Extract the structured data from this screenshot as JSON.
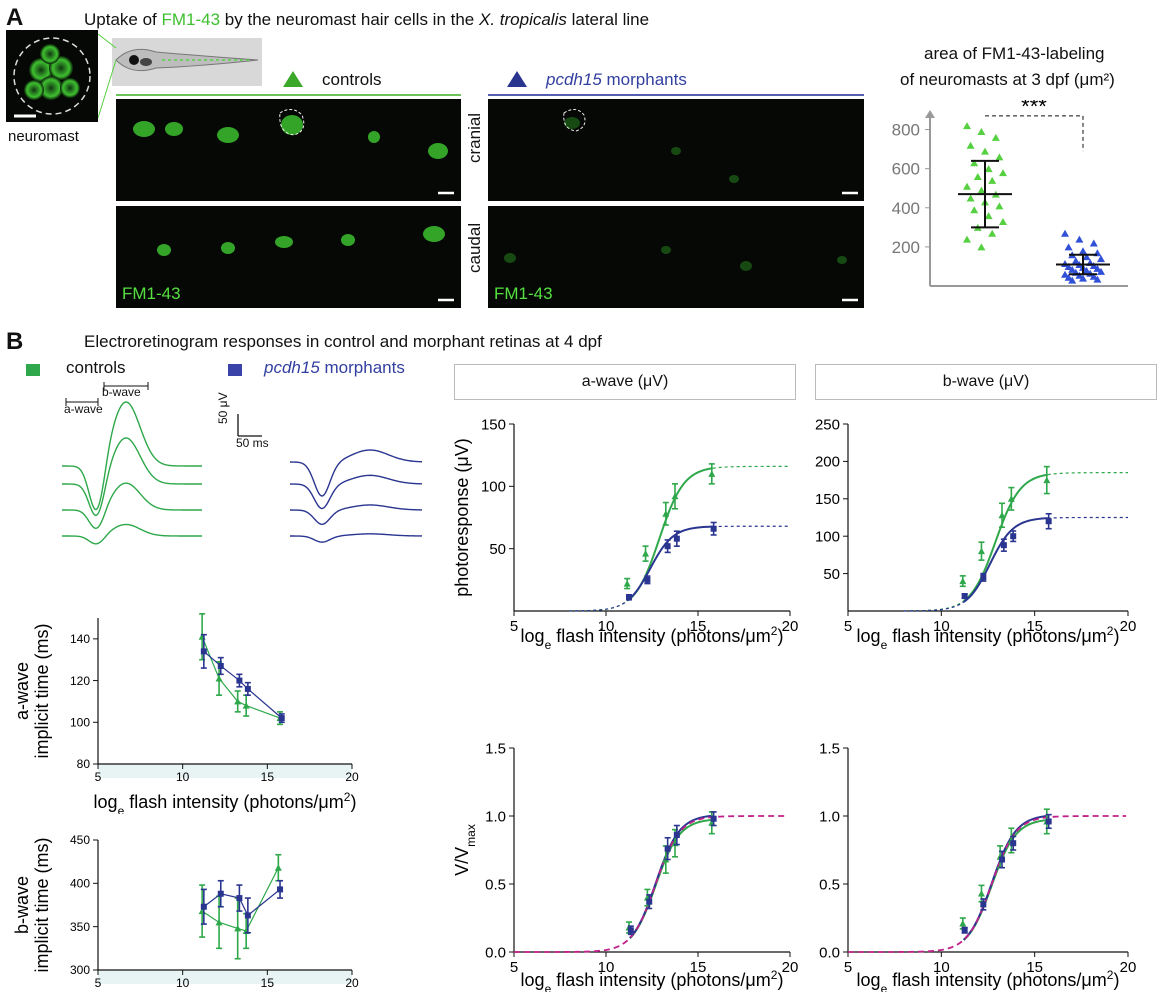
{
  "panelA": {
    "letter": "A",
    "title_pre": "Uptake of ",
    "title_dye": "FM1-43",
    "title_mid": " by the neuromast hair cells in the ",
    "title_species": "X. tropicalis",
    "title_post": " lateral line",
    "neuromast_label": "neuromast",
    "controls_label": "controls",
    "morphants_gene": "pcdh15",
    "morphants_label": " morphants",
    "cranial_label": "cranial",
    "caudal_label": "caudal",
    "dye_label": "FM1-43",
    "scatter_title_line1": "area of FM1-43-labeling",
    "scatter_title_line2": "of neuromasts at 3 dpf (μm²)",
    "significance": "***",
    "colors": {
      "control": "#55d040",
      "morphant": "#3050d8"
    }
  },
  "panelB": {
    "letter": "B",
    "title": "Electroretinogram responses in control and morphant retinas at 4 dpf",
    "legend_controls": "controls",
    "legend_gene": "pcdh15",
    "legend_morphants": " morphants",
    "bwave_bracket": "b-wave",
    "awave_bracket": "a-wave",
    "scale_uV": "50 μV",
    "scale_ms": "50 ms",
    "header_a": "a-wave (μV)",
    "header_b": "b-wave (μV)",
    "colors": {
      "control": "#2ea84a",
      "morphant": "#2a3590",
      "norm_fit": "#c0208a"
    }
  },
  "chart_data": [
    {
      "type": "scatter",
      "title": "area of FM1-43-labeling of neuromasts at 3 dpf (μm²)",
      "yticks": [
        200,
        400,
        600,
        800
      ],
      "ylim": [
        0,
        900
      ],
      "groups": [
        {
          "name": "controls",
          "mean": 470,
          "sd_low": 300,
          "sd_high": 640,
          "values": [
            820,
            790,
            760,
            720,
            690,
            660,
            630,
            600,
            580,
            560,
            540,
            510,
            490,
            470,
            450,
            430,
            410,
            390,
            360,
            330,
            300,
            270,
            240,
            200
          ]
        },
        {
          "name": "pcdh15 morphants",
          "mean": 110,
          "sd_low": 60,
          "sd_high": 160,
          "values": [
            270,
            240,
            220,
            200,
            180,
            170,
            160,
            150,
            140,
            130,
            120,
            115,
            110,
            105,
            100,
            95,
            90,
            85,
            80,
            75,
            70,
            65,
            60,
            55,
            50,
            45,
            40,
            35,
            30
          ]
        }
      ]
    },
    {
      "type": "line",
      "xlabel": "logₑ flash intensity (photons/μm²)",
      "ylabel": "photoresponse (μV)",
      "panel": "a-wave (μV)",
      "xlim": [
        5,
        20
      ],
      "ylim": [
        0,
        150
      ],
      "xticks": [
        5,
        10,
        15,
        20
      ],
      "yticks": [
        50,
        100,
        150
      ],
      "x": [
        11.2,
        12.2,
        13.3,
        13.8,
        15.8
      ],
      "series": [
        {
          "name": "controls",
          "values": [
            22,
            46,
            78,
            92,
            110
          ],
          "err": [
            4,
            6,
            9,
            10,
            8
          ],
          "vmax": 116,
          "ahalf": 12.9,
          "n": 1.5
        },
        {
          "name": "pcdh15 morphants",
          "values": [
            11,
            25,
            52,
            58,
            66
          ],
          "err": [
            2,
            3,
            5,
            6,
            5
          ],
          "vmax": 68,
          "ahalf": 12.4,
          "n": 1.6
        }
      ]
    },
    {
      "type": "line",
      "xlabel": "logₑ flash intensity (photons/μm²)",
      "panel": "b-wave (μV)",
      "xlim": [
        5,
        20
      ],
      "ylim": [
        0,
        250
      ],
      "xticks": [
        5,
        10,
        15,
        20
      ],
      "yticks": [
        50,
        100,
        150,
        200,
        250
      ],
      "x": [
        11.2,
        12.2,
        13.3,
        13.8,
        15.7
      ],
      "series": [
        {
          "name": "controls",
          "values": [
            40,
            80,
            128,
            150,
            175
          ],
          "err": [
            7,
            12,
            16,
            15,
            18
          ],
          "vmax": 185,
          "ahalf": 12.9,
          "n": 1.5
        },
        {
          "name": "pcdh15 morphants",
          "values": [
            20,
            45,
            88,
            100,
            120
          ],
          "err": [
            3,
            5,
            8,
            7,
            10
          ],
          "vmax": 125,
          "ahalf": 12.6,
          "n": 1.6
        }
      ]
    },
    {
      "type": "line",
      "xlabel": "logₑ flash intensity (photons/μm²)",
      "ylabel": "V/V_max",
      "xlim": [
        5,
        20
      ],
      "ylim": [
        0,
        1.5
      ],
      "xticks": [
        5,
        10,
        15,
        20
      ],
      "yticks": [
        0.0,
        0.5,
        1.0,
        1.5
      ],
      "x": [
        11.3,
        12.3,
        13.3,
        13.8,
        15.8
      ],
      "series": [
        {
          "name": "controls",
          "values": [
            0.18,
            0.4,
            0.68,
            0.8,
            0.95
          ],
          "err": [
            0.04,
            0.06,
            0.1,
            0.1,
            0.08
          ]
        },
        {
          "name": "pcdh15 morphants",
          "values": [
            0.16,
            0.37,
            0.76,
            0.86,
            0.98
          ],
          "err": [
            0.03,
            0.05,
            0.08,
            0.07,
            0.05
          ]
        }
      ]
    },
    {
      "type": "line",
      "xlabel": "logₑ flash intensity (photons/μm²)",
      "xlim": [
        5,
        20
      ],
      "ylim": [
        0,
        1.5
      ],
      "xticks": [
        5,
        10,
        15,
        20
      ],
      "yticks": [
        0.0,
        0.5,
        1.0,
        1.5
      ],
      "x": [
        11.2,
        12.2,
        13.2,
        13.8,
        15.7
      ],
      "series": [
        {
          "name": "controls",
          "values": [
            0.21,
            0.43,
            0.7,
            0.82,
            0.96
          ],
          "err": [
            0.04,
            0.06,
            0.08,
            0.09,
            0.09
          ]
        },
        {
          "name": "pcdh15 morphants",
          "values": [
            0.16,
            0.35,
            0.68,
            0.8,
            0.96
          ],
          "err": [
            0.02,
            0.04,
            0.06,
            0.05,
            0.05
          ]
        }
      ]
    },
    {
      "type": "line",
      "ylabel": "a-wave implicit time (ms)",
      "xlabel": "logₑ flash intensity (photons/μm²)",
      "xlim": [
        5,
        20
      ],
      "ylim": [
        80,
        150
      ],
      "xticks": [
        5,
        10,
        15,
        20
      ],
      "yticks": [
        80,
        100,
        120,
        140
      ],
      "x": [
        11.2,
        12.2,
        13.3,
        13.8,
        15.8
      ],
      "series": [
        {
          "name": "controls",
          "values": [
            141,
            121,
            110,
            108,
            102
          ],
          "err": [
            11,
            8,
            5,
            5,
            3
          ]
        },
        {
          "name": "pcdh15 morphants",
          "values": [
            134,
            127,
            120,
            116,
            102
          ],
          "err": [
            8,
            4,
            3,
            3,
            2
          ]
        }
      ]
    },
    {
      "type": "line",
      "ylabel": "b-wave implicit time (ms)",
      "xlim": [
        5,
        20
      ],
      "ylim": [
        300,
        450
      ],
      "xticks": [
        5,
        10,
        15,
        20
      ],
      "yticks": [
        300,
        350,
        400,
        450
      ],
      "x": [
        11.2,
        12.2,
        13.3,
        13.8,
        15.7
      ],
      "series": [
        {
          "name": "controls",
          "values": [
            368,
            355,
            348,
            345,
            418
          ],
          "err": [
            30,
            30,
            35,
            20,
            15
          ]
        },
        {
          "name": "pcdh15 morphants",
          "values": [
            373,
            388,
            383,
            363,
            393
          ],
          "err": [
            20,
            15,
            15,
            20,
            10
          ]
        }
      ]
    }
  ]
}
